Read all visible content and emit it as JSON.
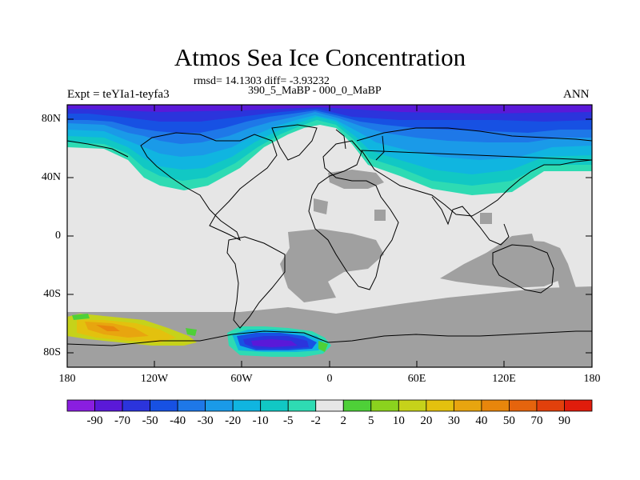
{
  "title": "Atmos Sea Ice Concentration",
  "stats": "rmsd= 14.1303 diff= -3.93232",
  "period": "390_5_MaBP - 000_0_MaBP",
  "experiment": "Expt = teYIa1-teyfa3",
  "season": "ANN",
  "y_axis_labels": [
    "80N",
    "40N",
    "0",
    "40S",
    "80S"
  ],
  "x_axis_labels": [
    "180",
    "120W",
    "60W",
    "0",
    "60E",
    "120E",
    "180"
  ],
  "colorbar": {
    "labels": [
      "-90",
      "-70",
      "-50",
      "-40",
      "-30",
      "-20",
      "-10",
      "-5",
      "-2",
      "2",
      "5",
      "10",
      "20",
      "30",
      "40",
      "50",
      "70",
      "90"
    ],
    "colors": [
      "#8a1ee0",
      "#5a19d8",
      "#2b34dc",
      "#1751e3",
      "#1e78e8",
      "#1a9ae8",
      "#10b5e0",
      "#11c8c4",
      "#2edbb3",
      "#e6e6e6",
      "#4ed038",
      "#8bd21e",
      "#c6d21a",
      "#e3c10e",
      "#e8a50f",
      "#e8860c",
      "#e5640d",
      "#e2400c",
      "#e01c0c"
    ]
  },
  "colors": {
    "land": "#e6e6e6",
    "ocean_no_change": "#a0a0a0",
    "frame": "#000000"
  }
}
